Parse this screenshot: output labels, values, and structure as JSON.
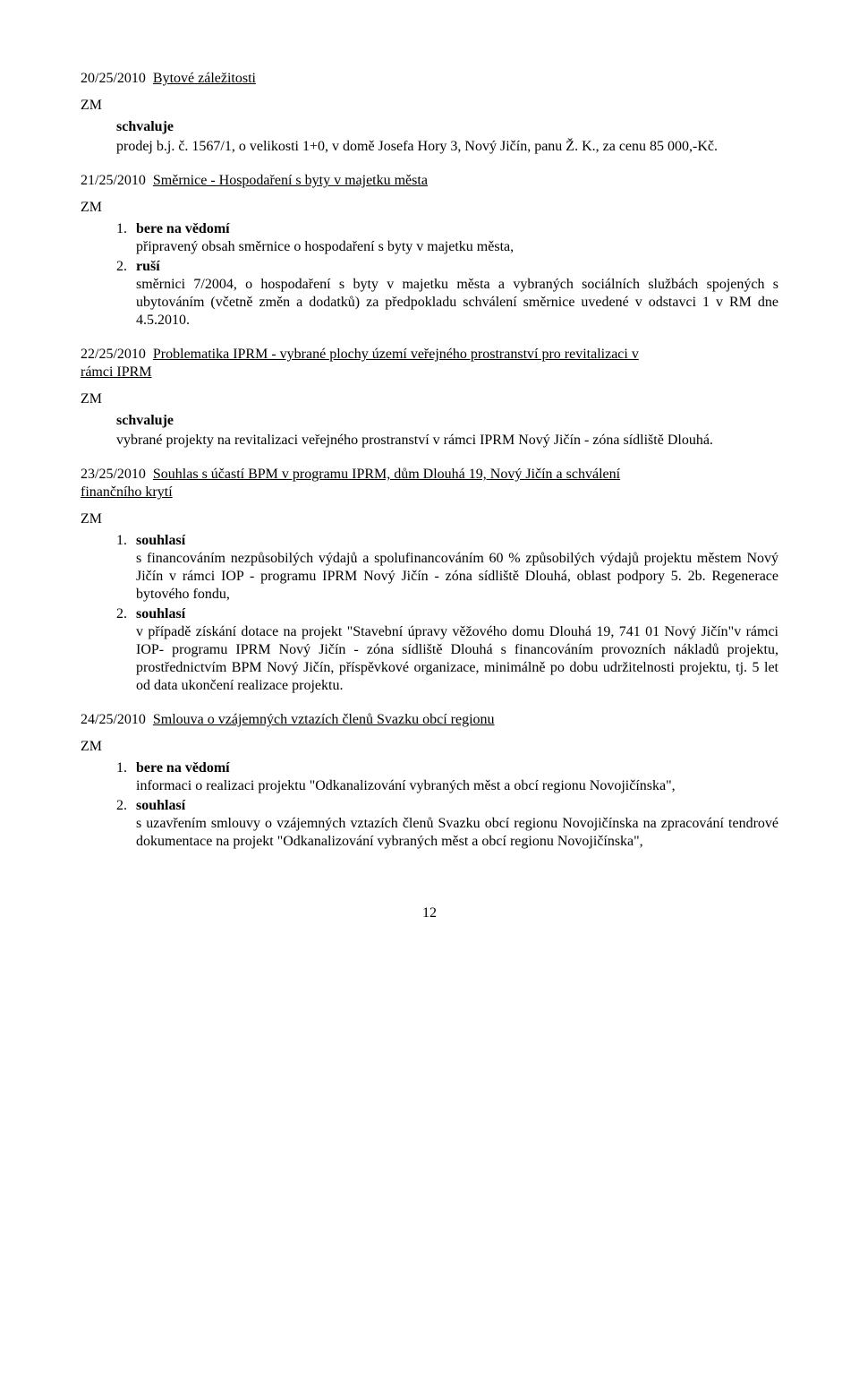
{
  "page_number": "12",
  "sections": [
    {
      "id": "s20",
      "number": "20/25/2010",
      "title": "Bytové záležitosti",
      "zm": "ZM",
      "schvaluje_text": "schvaluje",
      "body": "prodej b.j. č. 1567/1, o velikosti 1+0, v domě Josefa Hory 3, Nový Jičín, panu Ž. K., za cenu 85 000,-Kč."
    },
    {
      "id": "s21",
      "number": "21/25/2010",
      "title": "Směrnice - Hospodaření s byty v majetku města",
      "zm": "ZM",
      "items": [
        {
          "num": "1.",
          "label": "bere na vědomí",
          "body": "připravený obsah směrnice o hospodaření s byty v majetku města,"
        },
        {
          "num": "2.",
          "label": "ruší",
          "body": "směrnici 7/2004, o hospodaření s byty v majetku města a vybraných sociálních službách spojených s ubytováním (včetně změn a dodatků) za předpokladu schválení směrnice uvedené v odstavci 1 v RM dne 4.5.2010."
        }
      ]
    },
    {
      "id": "s22",
      "number": "22/25/2010",
      "title_line1": "Problematika IPRM - vybrané plochy území veřejného prostranství pro revitalizaci v",
      "title_line2": "rámci IPRM",
      "zm": "ZM",
      "schvaluje_text": "schvaluje",
      "body": "vybrané projekty na revitalizaci veřejného prostranství v rámci IPRM Nový Jičín - zóna sídliště Dlouhá."
    },
    {
      "id": "s23",
      "number": "23/25/2010",
      "title_line1": "Souhlas s účastí BPM v programu IPRM, dům Dlouhá 19, Nový Jičín a schválení",
      "title_line2": "finančního krytí",
      "zm": "ZM",
      "items": [
        {
          "num": "1.",
          "label": "souhlasí",
          "body": "s financováním nezpůsobilých výdajů a spolufinancováním 60 % způsobilých výdajů projektu městem Nový Jičín v rámci IOP - programu IPRM Nový Jičín - zóna sídliště Dlouhá, oblast podpory 5. 2b. Regenerace bytového fondu,"
        },
        {
          "num": "2.",
          "label": "souhlasí",
          "body": "v případě získání dotace na projekt \"Stavební úpravy věžového domu Dlouhá 19, 741 01 Nový Jičín\"v rámci IOP- programu IPRM Nový Jičín - zóna sídliště Dlouhá s financováním provozních nákladů projektu, prostřednictvím BPM Nový Jičín, příspěvkové organizace, minimálně po dobu udržitelnosti projektu, tj. 5 let od data ukončení realizace projektu."
        }
      ]
    },
    {
      "id": "s24",
      "number": "24/25/2010",
      "title": "Smlouva o vzájemných vztazích členů Svazku obcí regionu",
      "zm": "ZM",
      "items": [
        {
          "num": "1.",
          "label": "bere na vědomí",
          "body": "informaci o realizaci projektu \"Odkanalizování vybraných měst a obcí regionu Novojičínska\","
        },
        {
          "num": "2.",
          "label": "souhlasí",
          "body": "s uzavřením smlouvy o vzájemných vztazích členů Svazku obcí regionu Novojičínska na zpracování tendrové dokumentace na projekt \"Odkanalizování vybraných měst a obcí regionu Novojičínska\","
        }
      ]
    }
  ]
}
